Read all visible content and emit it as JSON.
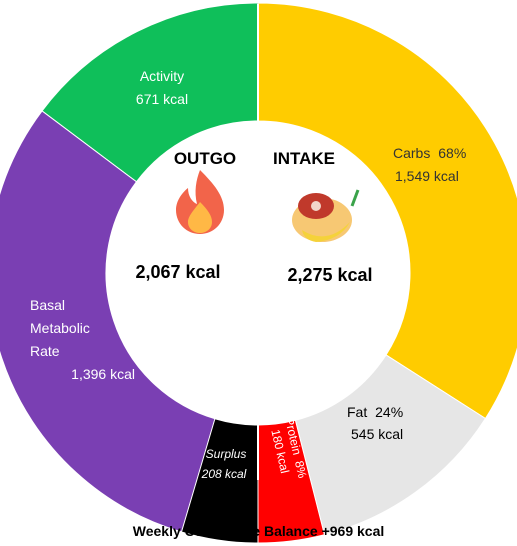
{
  "chart_data": {
    "type": "pie",
    "title": "",
    "footer": "Weekly Cumulative Balance +969 kcal",
    "outgo": {
      "header": "OUTGO",
      "total_label": "2,067 kcal",
      "segments": [
        {
          "name": "Activity",
          "value_label": "671 kcal",
          "value": 671,
          "color": "#0fbf5a"
        },
        {
          "name": "Basal Metabolic Rate",
          "name_lines": [
            "Basal",
            "Metabolic",
            "Rate"
          ],
          "value_label": "1,396 kcal",
          "value": 1396,
          "color": "#7a3fb3"
        },
        {
          "name": "Surplus",
          "value_label": "208 kcal",
          "value": 208,
          "color": "#000000"
        }
      ],
      "gap_color": "#bdbdbd"
    },
    "intake": {
      "header": "INTAKE",
      "total_label": "2,275 kcal",
      "segments": [
        {
          "name": "Carbs",
          "percent_label": "68%",
          "value_label": "1,549 kcal",
          "value": 1549,
          "color": "#ffcc00"
        },
        {
          "name": "Fat",
          "percent_label": "24%",
          "value_label": "545 kcal",
          "value": 545,
          "color": "#e6e6e6"
        },
        {
          "name": "Protein",
          "percent_label": "8%",
          "value_label": "180 kcal",
          "value": 180,
          "color": "#ff0000"
        }
      ]
    },
    "icons": {
      "outgo": "fire-icon",
      "intake": "food-plate-icon"
    }
  }
}
